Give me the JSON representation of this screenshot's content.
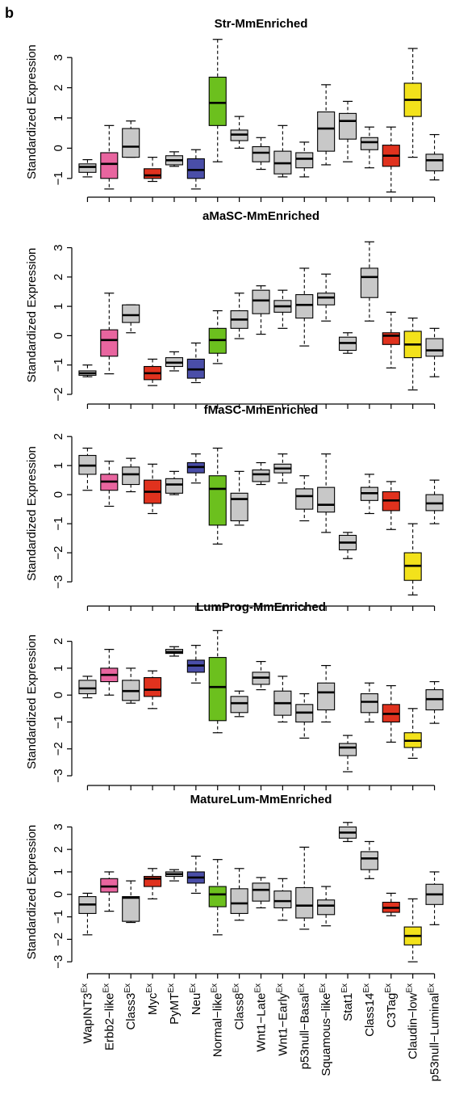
{
  "panel_letter": "b",
  "ylabel": "Standardized Expression",
  "categories": [
    "WapINT3",
    "Erbb2−like",
    "Class3",
    "Myc",
    "PyMT",
    "Neu",
    "Normal−like",
    "Class8",
    "Wnt1−Late",
    "Wnt1−Early",
    "p53null−Basal",
    "Squamous−like",
    "Stat1",
    "Class14",
    "C3Tag",
    "Claudin−low",
    "p53null−Luminal"
  ],
  "category_superscript": "Ex",
  "box_colors": [
    "#c8c8c8",
    "#e8659f",
    "#c8c8c8",
    "#e0321e",
    "#c8c8c8",
    "#4a4ea8",
    "#6cc01e",
    "#c8c8c8",
    "#c8c8c8",
    "#c8c8c8",
    "#c8c8c8",
    "#c8c8c8",
    "#c8c8c8",
    "#c8c8c8",
    "#e0321e",
    "#f3e21b",
    "#c8c8c8"
  ],
  "chart_data": [
    {
      "type": "boxplot",
      "title": "Str-MmEnriched",
      "ylim": [
        -1.3,
        3.7
      ],
      "yticks": [
        -1,
        0,
        1,
        2,
        3
      ],
      "series": [
        {
          "min": -0.95,
          "q1": -0.8,
          "median": -0.62,
          "q3": -0.52,
          "max": -0.38
        },
        {
          "min": -1.35,
          "q1": -1.0,
          "median": -0.52,
          "q3": -0.15,
          "max": 0.75
        },
        {
          "min": -0.3,
          "q1": -0.3,
          "median": 0.05,
          "q3": 0.65,
          "max": 0.9
        },
        {
          "min": -1.1,
          "q1": -1.0,
          "median": -0.9,
          "q3": -0.68,
          "max": -0.3
        },
        {
          "min": -0.6,
          "q1": -0.55,
          "median": -0.4,
          "q3": -0.25,
          "max": -0.12
        },
        {
          "min": -1.35,
          "q1": -1.0,
          "median": -0.72,
          "q3": -0.35,
          "max": -0.05
        },
        {
          "min": -0.45,
          "q1": 0.75,
          "median": 1.5,
          "q3": 2.35,
          "max": 3.6
        },
        {
          "min": 0.0,
          "q1": 0.25,
          "median": 0.45,
          "q3": 0.6,
          "max": 1.05
        },
        {
          "min": -0.7,
          "q1": -0.45,
          "median": -0.15,
          "q3": 0.05,
          "max": 0.35
        },
        {
          "min": -0.95,
          "q1": -0.85,
          "median": -0.5,
          "q3": -0.1,
          "max": 0.75
        },
        {
          "min": -0.95,
          "q1": -0.65,
          "median": -0.35,
          "q3": -0.15,
          "max": 0.2
        },
        {
          "min": -0.55,
          "q1": -0.1,
          "median": 0.65,
          "q3": 1.2,
          "max": 2.1
        },
        {
          "min": -0.45,
          "q1": 0.3,
          "median": 0.9,
          "q3": 1.15,
          "max": 1.55
        },
        {
          "min": -0.65,
          "q1": -0.05,
          "median": 0.2,
          "q3": 0.35,
          "max": 0.7
        },
        {
          "min": -1.45,
          "q1": -0.6,
          "median": -0.25,
          "q3": 0.1,
          "max": 0.7
        },
        {
          "min": -0.3,
          "q1": 1.05,
          "median": 1.6,
          "q3": 2.15,
          "max": 3.3
        },
        {
          "min": -1.05,
          "q1": -0.75,
          "median": -0.4,
          "q3": -0.2,
          "max": 0.45
        }
      ]
    },
    {
      "type": "boxplot",
      "title": "aMaSC-MmEnriched",
      "ylim": [
        -2.0,
        3.4
      ],
      "yticks": [
        -2,
        -1,
        0,
        1,
        2,
        3
      ],
      "series": [
        {
          "min": -1.4,
          "q1": -1.35,
          "median": -1.28,
          "q3": -1.2,
          "max": -1.0
        },
        {
          "min": -1.3,
          "q1": -0.7,
          "median": -0.15,
          "q3": 0.2,
          "max": 1.45
        },
        {
          "min": 0.1,
          "q1": 0.45,
          "median": 0.7,
          "q3": 1.05,
          "max": 1.05
        },
        {
          "min": -1.7,
          "q1": -1.5,
          "median": -1.28,
          "q3": -1.05,
          "max": -0.8
        },
        {
          "min": -1.2,
          "q1": -1.05,
          "median": -0.92,
          "q3": -0.75,
          "max": -0.55
        },
        {
          "min": -1.6,
          "q1": -1.45,
          "median": -1.15,
          "q3": -0.8,
          "max": -0.25
        },
        {
          "min": -0.95,
          "q1": -0.6,
          "median": -0.15,
          "q3": 0.25,
          "max": 0.85
        },
        {
          "min": -0.1,
          "q1": 0.25,
          "median": 0.55,
          "q3": 0.85,
          "max": 1.45
        },
        {
          "min": 0.05,
          "q1": 0.75,
          "median": 1.2,
          "q3": 1.55,
          "max": 1.7
        },
        {
          "min": 0.25,
          "q1": 0.8,
          "median": 1.0,
          "q3": 1.2,
          "max": 1.55
        },
        {
          "min": -0.35,
          "q1": 0.6,
          "median": 1.05,
          "q3": 1.4,
          "max": 2.3
        },
        {
          "min": 0.5,
          "q1": 1.05,
          "median": 1.3,
          "q3": 1.45,
          "max": 2.1
        },
        {
          "min": -0.6,
          "q1": -0.5,
          "median": -0.25,
          "q3": -0.05,
          "max": 0.1
        },
        {
          "min": 0.5,
          "q1": 1.3,
          "median": 2.0,
          "q3": 2.3,
          "max": 3.2
        },
        {
          "min": -1.1,
          "q1": -0.3,
          "median": 0.0,
          "q3": 0.1,
          "max": 0.8
        },
        {
          "min": -1.85,
          "q1": -0.75,
          "median": -0.3,
          "q3": 0.15,
          "max": 0.6
        },
        {
          "min": -1.4,
          "q1": -0.7,
          "median": -0.5,
          "q3": -0.1,
          "max": 0.25
        }
      ]
    },
    {
      "type": "boxplot",
      "title": "fMaSC-MmEnriched",
      "ylim": [
        -3.5,
        2.2
      ],
      "yticks": [
        -3,
        -2,
        -1,
        0,
        1,
        2
      ],
      "series": [
        {
          "min": 0.15,
          "q1": 0.7,
          "median": 1.0,
          "q3": 1.35,
          "max": 1.6
        },
        {
          "min": -0.4,
          "q1": 0.15,
          "median": 0.45,
          "q3": 0.7,
          "max": 1.15
        },
        {
          "min": 0.1,
          "q1": 0.35,
          "median": 0.7,
          "q3": 0.95,
          "max": 1.25
        },
        {
          "min": -0.65,
          "q1": -0.3,
          "median": 0.1,
          "q3": 0.5,
          "max": 1.05
        },
        {
          "min": 0.0,
          "q1": 0.05,
          "median": 0.35,
          "q3": 0.55,
          "max": 0.8
        },
        {
          "min": 0.4,
          "q1": 0.75,
          "median": 0.95,
          "q3": 1.1,
          "max": 1.4
        },
        {
          "min": -1.7,
          "q1": -1.05,
          "median": 0.2,
          "q3": 0.65,
          "max": 1.6
        },
        {
          "min": -1.05,
          "q1": -0.9,
          "median": -0.15,
          "q3": 0.05,
          "max": 0.8
        },
        {
          "min": 0.35,
          "q1": 0.45,
          "median": 0.7,
          "q3": 0.85,
          "max": 1.1
        },
        {
          "min": 0.4,
          "q1": 0.75,
          "median": 0.9,
          "q3": 1.05,
          "max": 1.4
        },
        {
          "min": -0.9,
          "q1": -0.5,
          "median": -0.05,
          "q3": 0.2,
          "max": 0.65
        },
        {
          "min": -1.3,
          "q1": -0.6,
          "median": -0.35,
          "q3": 0.25,
          "max": 1.4
        },
        {
          "min": -2.2,
          "q1": -1.9,
          "median": -1.65,
          "q3": -1.4,
          "max": -1.3
        },
        {
          "min": -0.65,
          "q1": -0.2,
          "median": 0.05,
          "q3": 0.25,
          "max": 0.7
        },
        {
          "min": -1.2,
          "q1": -0.55,
          "median": -0.2,
          "q3": 0.1,
          "max": 0.45
        },
        {
          "min": -3.45,
          "q1": -2.95,
          "median": -2.45,
          "q3": -2.0,
          "max": -1.0
        },
        {
          "min": -1.0,
          "q1": -0.55,
          "median": -0.3,
          "q3": 0.0,
          "max": 0.5
        }
      ]
    },
    {
      "type": "boxplot",
      "title": "LumProg-MmEnriched",
      "ylim": [
        -3.0,
        2.5
      ],
      "yticks": [
        -3,
        -2,
        -1,
        0,
        1,
        2
      ],
      "series": [
        {
          "min": -0.1,
          "q1": 0.05,
          "median": 0.25,
          "q3": 0.55,
          "max": 0.7
        },
        {
          "min": 0.0,
          "q1": 0.5,
          "median": 0.75,
          "q3": 1.0,
          "max": 1.7
        },
        {
          "min": -0.3,
          "q1": -0.2,
          "median": 0.15,
          "q3": 0.55,
          "max": 1.0
        },
        {
          "min": -0.5,
          "q1": -0.05,
          "median": 0.2,
          "q3": 0.65,
          "max": 0.9
        },
        {
          "min": 1.45,
          "q1": 1.55,
          "median": 1.6,
          "q3": 1.7,
          "max": 1.8
        },
        {
          "min": 0.45,
          "q1": 0.85,
          "median": 1.1,
          "q3": 1.3,
          "max": 1.85
        },
        {
          "min": -1.4,
          "q1": -0.95,
          "median": 0.3,
          "q3": 1.4,
          "max": 2.4
        },
        {
          "min": -0.8,
          "q1": -0.65,
          "median": -0.3,
          "q3": -0.05,
          "max": 0.15
        },
        {
          "min": 0.2,
          "q1": 0.4,
          "median": 0.65,
          "q3": 0.85,
          "max": 1.25
        },
        {
          "min": -1.0,
          "q1": -0.75,
          "median": -0.3,
          "q3": 0.15,
          "max": 0.7
        },
        {
          "min": -1.6,
          "q1": -1.0,
          "median": -0.65,
          "q3": -0.35,
          "max": 0.05
        },
        {
          "min": -1.0,
          "q1": -0.55,
          "median": 0.1,
          "q3": 0.45,
          "max": 1.1
        },
        {
          "min": -2.85,
          "q1": -2.25,
          "median": -1.95,
          "q3": -1.8,
          "max": -1.5
        },
        {
          "min": -1.0,
          "q1": -0.65,
          "median": -0.25,
          "q3": 0.05,
          "max": 0.45
        },
        {
          "min": -1.75,
          "q1": -1.0,
          "median": -0.7,
          "q3": -0.35,
          "max": 0.35
        },
        {
          "min": -2.35,
          "q1": -1.95,
          "median": -1.7,
          "q3": -1.4,
          "max": -0.5
        },
        {
          "min": -1.05,
          "q1": -0.55,
          "median": -0.15,
          "q3": 0.2,
          "max": 0.5
        }
      ]
    },
    {
      "type": "boxplot",
      "title": "MatureLum-MmEnriched",
      "ylim": [
        -3.1,
        3.3
      ],
      "yticks": [
        -3,
        -2,
        -1,
        0,
        1,
        2,
        3
      ],
      "series": [
        {
          "min": -1.8,
          "q1": -0.85,
          "median": -0.45,
          "q3": -0.1,
          "max": 0.05
        },
        {
          "min": -0.75,
          "q1": 0.1,
          "median": 0.35,
          "q3": 0.7,
          "max": 1.0
        },
        {
          "min": -1.25,
          "q1": -1.2,
          "median": -0.15,
          "q3": -0.1,
          "max": 0.6
        },
        {
          "min": -0.2,
          "q1": 0.35,
          "median": 0.7,
          "q3": 0.8,
          "max": 1.15
        },
        {
          "min": 0.6,
          "q1": 0.8,
          "median": 0.9,
          "q3": 1.0,
          "max": 1.1
        },
        {
          "min": 0.05,
          "q1": 0.5,
          "median": 0.75,
          "q3": 1.0,
          "max": 1.7
        },
        {
          "min": -1.8,
          "q1": -0.55,
          "median": 0.0,
          "q3": 0.35,
          "max": 1.55
        },
        {
          "min": -1.15,
          "q1": -0.85,
          "median": -0.4,
          "q3": 0.25,
          "max": 1.15
        },
        {
          "min": -0.6,
          "q1": -0.3,
          "median": 0.2,
          "q3": 0.5,
          "max": 0.75
        },
        {
          "min": -1.15,
          "q1": -0.6,
          "median": -0.3,
          "q3": 0.15,
          "max": 0.7
        },
        {
          "min": -1.55,
          "q1": -1.05,
          "median": -0.5,
          "q3": 0.3,
          "max": 2.1
        },
        {
          "min": -1.4,
          "q1": -0.9,
          "median": -0.5,
          "q3": -0.25,
          "max": 0.35
        },
        {
          "min": 2.35,
          "q1": 2.5,
          "median": 2.75,
          "q3": 3.0,
          "max": 3.2
        },
        {
          "min": 0.7,
          "q1": 1.1,
          "median": 1.6,
          "q3": 1.9,
          "max": 2.35
        },
        {
          "min": -0.95,
          "q1": -0.8,
          "median": -0.6,
          "q3": -0.35,
          "max": 0.05
        },
        {
          "min": -3.0,
          "q1": -2.25,
          "median": -1.85,
          "q3": -1.45,
          "max": -0.2
        },
        {
          "min": -1.35,
          "q1": -0.45,
          "median": 0.0,
          "q3": 0.45,
          "max": 1.0
        }
      ]
    }
  ]
}
